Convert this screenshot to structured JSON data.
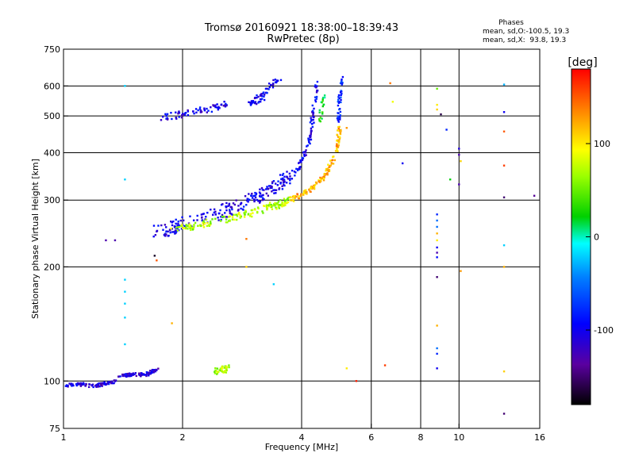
{
  "chart_data": {
    "type": "scatter",
    "title": "Tromsø 20160921 18:38:00–18:39:43",
    "subtitle": "RwPretec (8p)",
    "xlabel": "Frequency [MHz]",
    "ylabel": "Stationary phase Virtual Height [km]",
    "x_scale": "log",
    "y_scale": "log",
    "xlim": [
      1,
      16
    ],
    "ylim": [
      75,
      750
    ],
    "x_ticks": [
      1,
      2,
      4,
      6,
      8,
      10,
      16
    ],
    "x_tick_labels": [
      "1",
      "2",
      "4",
      "6",
      "8",
      "10",
      "16"
    ],
    "y_ticks": [
      75,
      100,
      200,
      300,
      400,
      500,
      600,
      750
    ],
    "y_tick_labels": [
      "75",
      "100",
      "200",
      "300",
      "400",
      "500",
      "600",
      "750"
    ],
    "grid": true,
    "phases": {
      "title": "Phases",
      "line_o": "mean, sd,O:-100.5, 19.3",
      "line_x": "mean, sd,X:  93.8, 19.3"
    },
    "colorbar": {
      "label": "[deg]",
      "range": [
        -180,
        180
      ],
      "ticks": [
        100,
        0,
        -100
      ],
      "tick_labels": [
        "100",
        "0",
        "-100"
      ]
    },
    "traces": [
      {
        "x": [
          1.0,
          1.1,
          1.2,
          1.3,
          1.35
        ],
        "y": [
          97,
          98,
          97,
          99,
          100
        ],
        "phase": -110,
        "n": 90,
        "jf": 0.015,
        "jh": 0.01
      },
      {
        "x": [
          1.38,
          1.5,
          1.62,
          1.72
        ],
        "y": [
          103,
          104,
          104,
          107
        ],
        "phase": -110,
        "n": 75,
        "jf": 0.012,
        "jh": 0.01
      },
      {
        "x": [
          1.72,
          2.0,
          2.5,
          3.0,
          3.4,
          3.8
        ],
        "y": [
          248,
          258,
          278,
          300,
          322,
          350
        ],
        "phase": -100,
        "n": 230,
        "jf": 0.03,
        "jh": 0.04
      },
      {
        "x": [
          3.9,
          4.05,
          4.2,
          4.3,
          4.37
        ],
        "y": [
          360,
          390,
          440,
          520,
          620
        ],
        "phase": -100,
        "n": 80,
        "jf": 0.01,
        "jh": 0.02
      },
      {
        "x": [
          1.9,
          2.2,
          2.6,
          3.0,
          3.4,
          3.75
        ],
        "y": [
          250,
          258,
          268,
          278,
          290,
          300
        ],
        "phase": 70,
        "n": 160,
        "jf": 0.02,
        "jh": 0.02
      },
      {
        "x": [
          3.75,
          4.2,
          4.6,
          4.9,
          5.0
        ],
        "y": [
          300,
          320,
          350,
          400,
          470
        ],
        "phase": 120,
        "n": 140,
        "jf": 0.01,
        "jh": 0.015
      },
      {
        "x": [
          4.95,
          5.0,
          5.05
        ],
        "y": [
          480,
          560,
          640
        ],
        "phase": -80,
        "n": 40,
        "jf": 0.01,
        "jh": 0.015
      },
      {
        "x": [
          4.45,
          4.5,
          4.55
        ],
        "y": [
          480,
          530,
          570
        ],
        "phase": 20,
        "n": 20,
        "jf": 0.01,
        "jh": 0.02
      },
      {
        "x": [
          1.78,
          2.0,
          2.3,
          2.6
        ],
        "y": [
          495,
          505,
          520,
          535
        ],
        "phase": -105,
        "n": 70,
        "jf": 0.02,
        "jh": 0.02
      },
      {
        "x": [
          2.95,
          3.2,
          3.5
        ],
        "y": [
          540,
          565,
          630
        ],
        "phase": -100,
        "n": 60,
        "jf": 0.02,
        "jh": 0.02
      },
      {
        "x": [
          2.45,
          2.6
        ],
        "y": [
          106,
          108
        ],
        "phase": 70,
        "n": 35,
        "jf": 0.02,
        "jh": 0.02
      }
    ],
    "points": [
      {
        "x": 1.43,
        "y": 600,
        "phase": -20
      },
      {
        "x": 1.43,
        "y": 340,
        "phase": -20
      },
      {
        "x": 1.43,
        "y": 185,
        "phase": -20
      },
      {
        "x": 1.43,
        "y": 172,
        "phase": -20
      },
      {
        "x": 1.43,
        "y": 160,
        "phase": -20
      },
      {
        "x": 1.43,
        "y": 147,
        "phase": -20
      },
      {
        "x": 1.43,
        "y": 125,
        "phase": -20
      },
      {
        "x": 1.28,
        "y": 235,
        "phase": -130
      },
      {
        "x": 1.35,
        "y": 235,
        "phase": -130
      },
      {
        "x": 1.7,
        "y": 214,
        "phase": -170
      },
      {
        "x": 1.72,
        "y": 208,
        "phase": 150
      },
      {
        "x": 1.88,
        "y": 142,
        "phase": 120
      },
      {
        "x": 2.9,
        "y": 200,
        "phase": 110
      },
      {
        "x": 3.4,
        "y": 180,
        "phase": -20
      },
      {
        "x": 2.9,
        "y": 237,
        "phase": 140
      },
      {
        "x": 5.2,
        "y": 108,
        "phase": 100
      },
      {
        "x": 5.5,
        "y": 100,
        "phase": 170
      },
      {
        "x": 5.2,
        "y": 465,
        "phase": 130
      },
      {
        "x": 6.5,
        "y": 110,
        "phase": 160
      },
      {
        "x": 6.7,
        "y": 610,
        "phase": 140
      },
      {
        "x": 6.8,
        "y": 545,
        "phase": 90
      },
      {
        "x": 7.2,
        "y": 375,
        "phase": -100
      },
      {
        "x": 8.8,
        "y": 590,
        "phase": 50
      },
      {
        "x": 8.8,
        "y": 535,
        "phase": 100
      },
      {
        "x": 8.8,
        "y": 520,
        "phase": 110
      },
      {
        "x": 9.0,
        "y": 505,
        "phase": -160
      },
      {
        "x": 8.8,
        "y": 275,
        "phase": -80
      },
      {
        "x": 8.8,
        "y": 265,
        "phase": -50
      },
      {
        "x": 8.8,
        "y": 255,
        "phase": -50
      },
      {
        "x": 8.8,
        "y": 245,
        "phase": 120
      },
      {
        "x": 8.8,
        "y": 235,
        "phase": 100
      },
      {
        "x": 8.8,
        "y": 225,
        "phase": -100
      },
      {
        "x": 8.8,
        "y": 218,
        "phase": -130
      },
      {
        "x": 8.8,
        "y": 212,
        "phase": -90
      },
      {
        "x": 8.8,
        "y": 188,
        "phase": -150
      },
      {
        "x": 8.8,
        "y": 140,
        "phase": 120
      },
      {
        "x": 8.8,
        "y": 122,
        "phase": -50
      },
      {
        "x": 8.8,
        "y": 118,
        "phase": -80
      },
      {
        "x": 8.8,
        "y": 108,
        "phase": -100
      },
      {
        "x": 9.3,
        "y": 460,
        "phase": -80
      },
      {
        "x": 9.5,
        "y": 340,
        "phase": 20
      },
      {
        "x": 10.0,
        "y": 410,
        "phase": -110
      },
      {
        "x": 10.0,
        "y": 395,
        "phase": -130
      },
      {
        "x": 10.1,
        "y": 380,
        "phase": 110
      },
      {
        "x": 10.0,
        "y": 330,
        "phase": -130
      },
      {
        "x": 10.1,
        "y": 195,
        "phase": 130
      },
      {
        "x": 13.0,
        "y": 605,
        "phase": -30
      },
      {
        "x": 13.0,
        "y": 512,
        "phase": -100
      },
      {
        "x": 13.0,
        "y": 455,
        "phase": 150
      },
      {
        "x": 13.0,
        "y": 370,
        "phase": 160
      },
      {
        "x": 13.0,
        "y": 305,
        "phase": -150
      },
      {
        "x": 13.0,
        "y": 228,
        "phase": -20
      },
      {
        "x": 13.0,
        "y": 200,
        "phase": 120
      },
      {
        "x": 13.0,
        "y": 106,
        "phase": 110
      },
      {
        "x": 13.0,
        "y": 82,
        "phase": -150
      },
      {
        "x": 15.5,
        "y": 308,
        "phase": -140
      }
    ]
  }
}
